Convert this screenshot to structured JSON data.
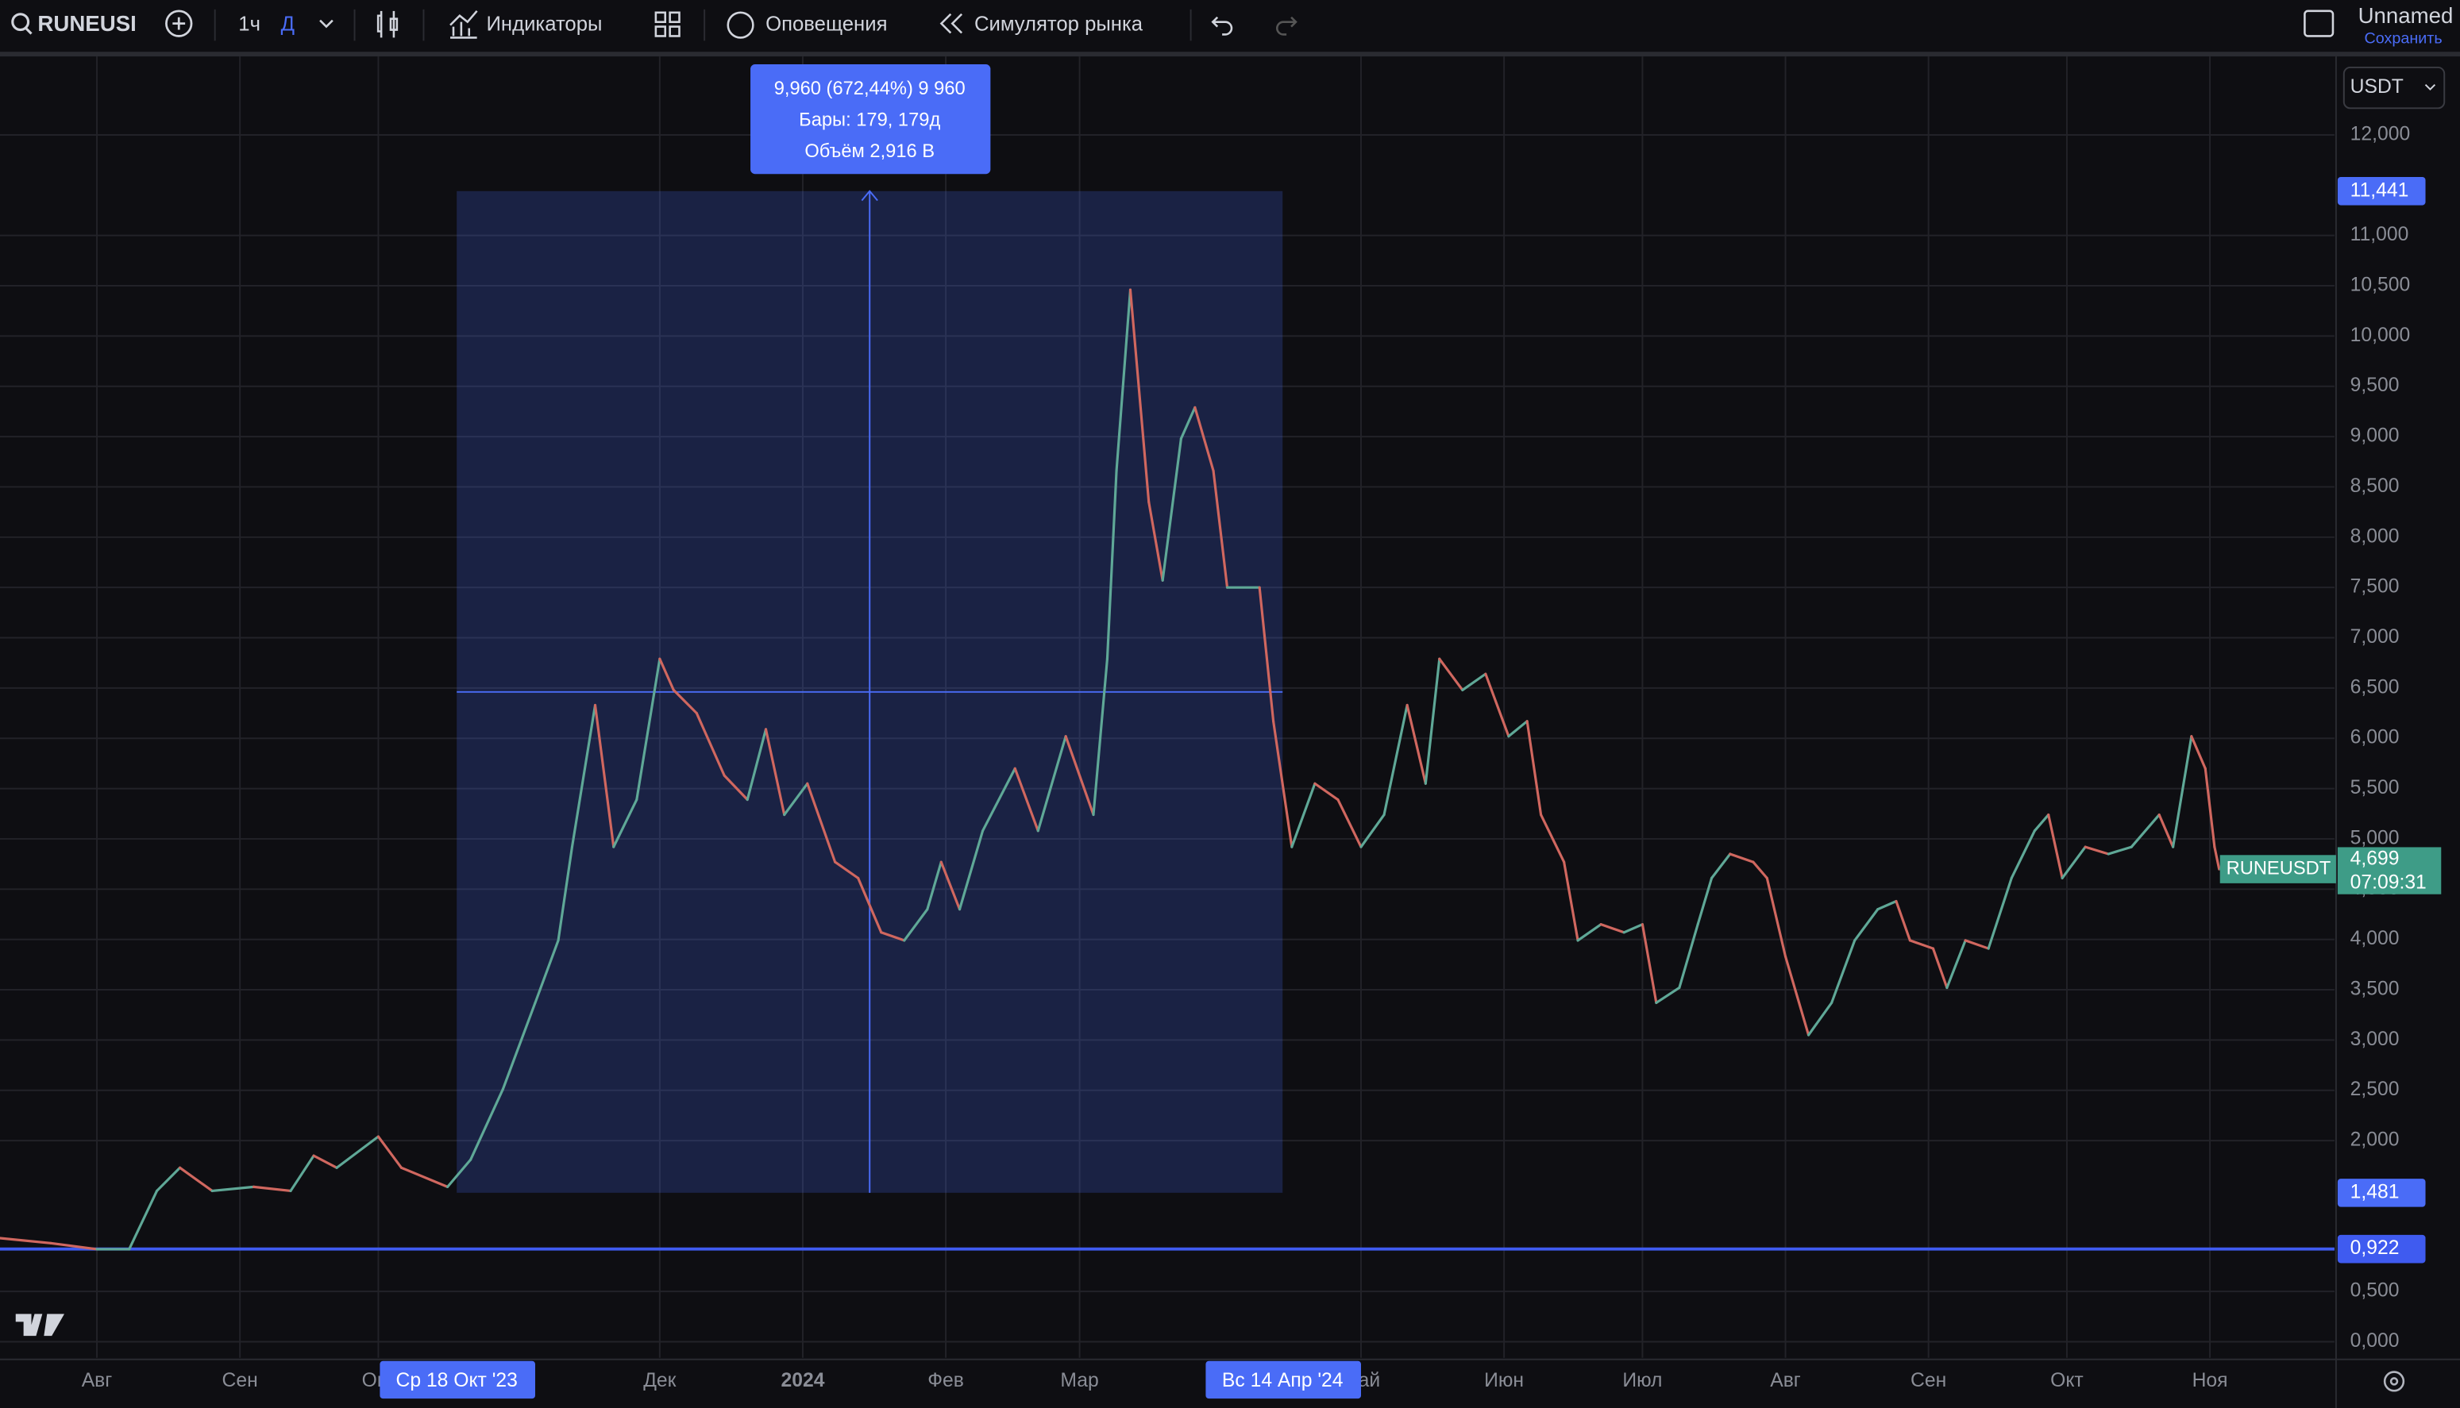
{
  "toolbar": {
    "symbol": "RUNEUSDT",
    "interval": "1ч",
    "interval_active": "Д",
    "indicators": "Индикаторы",
    "alerts": "Оповещения",
    "replay": "Симулятор рынка",
    "layout_name": "Unnamed",
    "save": "Сохранить",
    "currency": "USDT"
  },
  "chart_data": {
    "type": "line",
    "x": [
      -21,
      -10,
      0,
      7,
      13,
      18,
      25,
      34,
      42,
      47,
      52,
      61,
      66,
      76,
      81,
      88,
      95,
      100,
      103,
      108,
      112,
      117,
      122,
      125,
      130,
      136,
      141,
      145,
      149,
      154,
      160,
      165,
      170,
      175,
      180,
      183,
      187,
      192,
      199,
      204,
      210,
      216,
      219,
      221,
      224,
      228,
      231,
      235,
      238,
      242,
      245,
      252,
      255,
      259,
      264,
      269,
      274,
      279,
      284,
      288,
      291,
      296,
      301,
      306,
      310,
      313,
      318,
      321,
      326,
      331,
      335,
      338,
      343,
      347,
      350,
      354,
      359,
      362,
      366,
      371,
      376,
      381,
      386,
      390,
      393,
      398,
      401,
      405,
      410,
      415,
      420,
      423,
      426,
      431,
      436,
      441,
      447,
      450,
      454,
      457,
      459,
      460
    ],
    "series": [
      {
        "name": "RUNEUSDT",
        "up_color": "#5fa897",
        "down_color": "#d0675f",
        "values": [
          1.03,
          0.98,
          0.92,
          0.92,
          1.5,
          1.73,
          1.5,
          1.54,
          1.5,
          1.85,
          1.73,
          2.04,
          1.73,
          1.54,
          1.81,
          2.51,
          3.37,
          3.99,
          4.92,
          6.33,
          4.92,
          5.39,
          6.79,
          6.48,
          6.25,
          5.63,
          5.39,
          6.09,
          5.24,
          5.55,
          4.77,
          4.61,
          4.07,
          3.99,
          4.3,
          4.77,
          4.3,
          5.08,
          5.7,
          5.08,
          6.02,
          5.24,
          6.79,
          8.66,
          10.46,
          8.35,
          7.57,
          8.98,
          9.29,
          8.66,
          7.5,
          7.5,
          6.17,
          4.92,
          5.55,
          5.39,
          4.92,
          5.24,
          6.33,
          5.55,
          6.79,
          6.48,
          6.64,
          6.02,
          6.17,
          5.24,
          4.77,
          3.99,
          4.15,
          4.07,
          4.15,
          3.37,
          3.52,
          4.15,
          4.61,
          4.85,
          4.77,
          4.61,
          3.83,
          3.05,
          3.37,
          3.99,
          4.3,
          4.38,
          3.99,
          3.91,
          3.52,
          3.99,
          3.91,
          4.61,
          5.08,
          5.24,
          4.61,
          4.92,
          4.85,
          4.92,
          5.24,
          4.92,
          6.02,
          5.7,
          4.92,
          4.699
        ]
      }
    ],
    "xlim": [
      -21,
      485
    ],
    "ylim": [
      -0.16,
      12.78
    ],
    "xticks": [
      {
        "value": 0,
        "label": "Авг"
      },
      {
        "value": 31,
        "label": "Сен"
      },
      {
        "value": 61,
        "label": "Окт"
      },
      {
        "value": 122,
        "label": "Дек"
      },
      {
        "value": 153,
        "label": "2024"
      },
      {
        "value": 184,
        "label": "Фев"
      },
      {
        "value": 213,
        "label": "Мар"
      },
      {
        "value": 274,
        "label": "Май"
      },
      {
        "value": 305,
        "label": "Июн"
      },
      {
        "value": 335,
        "label": "Июл"
      },
      {
        "value": 366,
        "label": "Авг"
      },
      {
        "value": 397,
        "label": "Сен"
      },
      {
        "value": 427,
        "label": "Окт"
      },
      {
        "value": 458,
        "label": "Ноя"
      }
    ],
    "yticks": [
      {
        "value": 0,
        "label": "0,000"
      },
      {
        "value": 0.5,
        "label": "0,500"
      },
      {
        "value": 2,
        "label": "2,000"
      },
      {
        "value": 2.5,
        "label": "2,500"
      },
      {
        "value": 3,
        "label": "3,000"
      },
      {
        "value": 3.5,
        "label": "3,500"
      },
      {
        "value": 4,
        "label": "4,000"
      },
      {
        "value": 4.5,
        "label": "4,500"
      },
      {
        "value": 5,
        "label": "5,000"
      },
      {
        "value": 5.5,
        "label": "5,500"
      },
      {
        "value": 6,
        "label": "6,000"
      },
      {
        "value": 6.5,
        "label": "6,500"
      },
      {
        "value": 7,
        "label": "7,000"
      },
      {
        "value": 7.5,
        "label": "7,500"
      },
      {
        "value": 8,
        "label": "8,000"
      },
      {
        "value": 8.5,
        "label": "8,500"
      },
      {
        "value": 9,
        "label": "9,000"
      },
      {
        "value": 9.5,
        "label": "9,500"
      },
      {
        "value": 10,
        "label": "10,000"
      },
      {
        "value": 10.5,
        "label": "10,500"
      },
      {
        "value": 11,
        "label": "11,000"
      },
      {
        "value": 12,
        "label": "12,000"
      }
    ],
    "grid": true,
    "measure": {
      "x": [
        {
          "value": 78,
          "label": "Ср 18 Окт '23"
        },
        {
          "value": 257,
          "label": "Вс 14 Апр '24"
        }
      ],
      "y": [
        {
          "value": 1.481,
          "label": "1,481"
        },
        {
          "value": 11.441,
          "label": "11,441"
        }
      ],
      "color": "#4a6cf7",
      "lines": [
        "9,960 (672,44%) 9 960",
        "Бары: 179, 179д",
        "Объём 2,916 B"
      ]
    },
    "hline": {
      "value": 0.922,
      "label": "0,922",
      "color": "#3f5bf0"
    },
    "last_price": {
      "name": "RUNEUSDT",
      "value": 4.699,
      "label": "4,699",
      "timer": "07:09:31",
      "color": "#3e9c87"
    }
  }
}
